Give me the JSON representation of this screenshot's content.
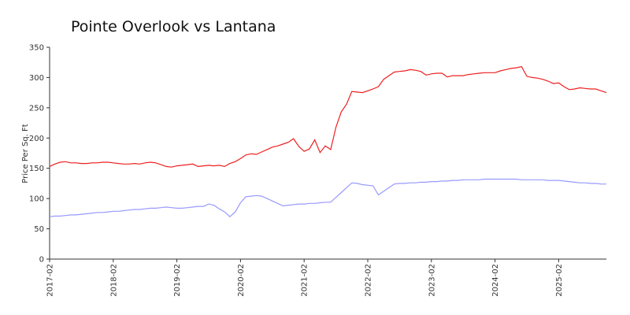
{
  "chart_data": {
    "type": "line",
    "title": "Pointe Overlook vs Lantana",
    "y_label": "Price Per Sq. Ft",
    "x": [
      "2017-02",
      "2017-03",
      "2017-04",
      "2017-05",
      "2017-06",
      "2017-07",
      "2017-08",
      "2017-09",
      "2017-10",
      "2017-11",
      "2017-12",
      "2018-01",
      "2018-02",
      "2018-03",
      "2018-04",
      "2018-05",
      "2018-06",
      "2018-07",
      "2018-08",
      "2018-09",
      "2018-10",
      "2018-11",
      "2018-12",
      "2019-01",
      "2019-02",
      "2019-03",
      "2019-04",
      "2019-05",
      "2019-06",
      "2019-07",
      "2019-08",
      "2019-09",
      "2019-10",
      "2019-11",
      "2019-12",
      "2020-01",
      "2020-02",
      "2020-03",
      "2020-04",
      "2020-05",
      "2020-06",
      "2020-07",
      "2020-08",
      "2020-09",
      "2020-10",
      "2020-11",
      "2020-12",
      "2021-01",
      "2021-02",
      "2021-03",
      "2021-04",
      "2021-05",
      "2021-06",
      "2021-07",
      "2021-08",
      "2021-09",
      "2021-10",
      "2021-11",
      "2021-12",
      "2022-01",
      "2022-02",
      "2022-03",
      "2022-04",
      "2022-05",
      "2022-06",
      "2022-07",
      "2022-08",
      "2022-09",
      "2022-10",
      "2022-11",
      "2022-12",
      "2023-01",
      "2023-02",
      "2023-03",
      "2023-04",
      "2023-05",
      "2023-06",
      "2023-07",
      "2023-08",
      "2023-09",
      "2023-10",
      "2023-11",
      "2023-12",
      "2024-01",
      "2024-02",
      "2024-03",
      "2024-04",
      "2024-05",
      "2024-06",
      "2024-07",
      "2024-08",
      "2024-09",
      "2024-10",
      "2024-11",
      "2024-12",
      "2025-01",
      "2025-02",
      "2025-03",
      "2025-04",
      "2025-05",
      "2025-06",
      "2025-07",
      "2025-08",
      "2025-09",
      "2025-10",
      "2025-11"
    ],
    "series": [
      {
        "color": "#ee2020",
        "values": [
          153,
          157,
          160,
          161,
          159,
          159,
          158,
          158,
          159,
          159,
          160,
          160,
          159,
          158,
          157,
          157,
          158,
          157,
          159,
          160,
          159,
          156,
          153,
          152,
          154,
          155,
          156,
          157,
          153,
          154,
          155,
          154,
          155,
          153,
          158,
          161,
          166,
          172,
          174,
          173,
          177,
          181,
          185,
          187,
          190,
          193,
          199,
          186,
          178,
          182,
          197,
          176,
          187,
          181,
          218,
          243,
          256,
          277,
          276,
          275,
          278,
          281,
          285,
          297,
          303,
          309,
          310,
          311,
          313,
          312,
          310,
          304,
          306,
          307,
          307,
          301,
          303,
          303,
          303,
          305,
          306,
          307,
          308,
          308,
          308,
          311,
          313,
          315,
          316,
          318,
          302,
          300,
          299,
          297,
          294,
          290,
          291,
          285,
          280,
          281,
          283,
          282,
          281,
          281,
          278,
          275
        ]
      },
      {
        "color": "#9999ff",
        "values": [
          70,
          71,
          71,
          72,
          73,
          73,
          74,
          75,
          76,
          77,
          77,
          78,
          79,
          79,
          80,
          81,
          82,
          82,
          83,
          84,
          84,
          85,
          86,
          85,
          84,
          84,
          85,
          86,
          87,
          87,
          91,
          89,
          83,
          78,
          70,
          78,
          93,
          103,
          104,
          105,
          104,
          100,
          96,
          92,
          88,
          89,
          90,
          91,
          91,
          92,
          92,
          93,
          94,
          94,
          102,
          110,
          118,
          126,
          125,
          123,
          122,
          121,
          106,
          112,
          118,
          124,
          125,
          125,
          126,
          126,
          127,
          127,
          128,
          128,
          129,
          129,
          130,
          130,
          131,
          131,
          131,
          131,
          132,
          132,
          132,
          132,
          132,
          132,
          132,
          131,
          131,
          131,
          131,
          131,
          130,
          130,
          130,
          129,
          128,
          127,
          126,
          126,
          125,
          125,
          124,
          124
        ]
      }
    ],
    "ylim": [
      0,
      350
    ],
    "yticks": [
      0,
      50,
      100,
      150,
      200,
      250,
      300,
      350
    ],
    "grid": false
  }
}
